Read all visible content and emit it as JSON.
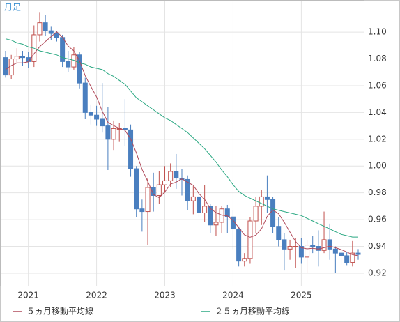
{
  "chart_data": {
    "type": "candlestick",
    "period_label": "月足",
    "categories": [
      null,
      null,
      null,
      null,
      "2021",
      null,
      null,
      null,
      null,
      null,
      null,
      null,
      null,
      null,
      null,
      null,
      "2022",
      null,
      null,
      null,
      null,
      null,
      null,
      null,
      null,
      null,
      null,
      null,
      "2023",
      null,
      null,
      null,
      null,
      null,
      null,
      null,
      null,
      null,
      null,
      null,
      "2024",
      null,
      null,
      null,
      null,
      null,
      null,
      null,
      null,
      null,
      null,
      null,
      "2025",
      null,
      null,
      null,
      null,
      null,
      null,
      null,
      null,
      null,
      null
    ],
    "open": [
      1.081,
      1.068,
      1.08,
      1.082,
      1.081,
      1.078,
      1.098,
      1.107,
      1.101,
      1.099,
      1.096,
      1.078,
      1.074,
      1.083,
      1.062,
      1.04,
      1.038,
      1.035,
      1.03,
      1.02,
      1.028,
      1.028,
      1.027,
      0.998,
      0.968,
      0.966,
      0.984,
      0.978,
      0.986,
      0.989,
      0.996,
      0.991,
      0.99,
      0.974,
      0.977,
      0.965,
      0.97,
      0.956,
      0.958,
      0.968,
      0.962,
      0.953,
      0.929,
      0.931,
      0.959,
      0.97,
      0.977,
      0.975,
      0.955,
      0.945,
      0.938,
      0.94,
      0.94,
      0.932,
      0.941,
      0.94,
      0.937,
      0.945,
      0.938,
      0.935,
      0.933,
      0.928,
      0.935
    ],
    "high": [
      1.086,
      1.083,
      1.088,
      1.086,
      1.085,
      1.105,
      1.115,
      1.113,
      1.104,
      1.101,
      1.098,
      1.086,
      1.089,
      1.085,
      1.066,
      1.046,
      1.045,
      1.062,
      1.044,
      1.034,
      1.032,
      1.05,
      1.031,
      1.0,
      0.975,
      0.991,
      0.995,
      0.996,
      1.0,
      1.002,
      1.009,
      0.998,
      0.993,
      0.985,
      0.981,
      0.986,
      0.972,
      0.97,
      0.97,
      0.971,
      0.967,
      0.955,
      0.935,
      0.962,
      0.977,
      0.982,
      0.993,
      0.977,
      0.962,
      0.95,
      0.945,
      0.946,
      0.946,
      0.945,
      0.948,
      0.952,
      0.966,
      0.957,
      0.94,
      0.938,
      0.936,
      0.944,
      0.938
    ],
    "low": [
      1.066,
      1.065,
      1.077,
      1.075,
      1.073,
      1.074,
      1.093,
      1.097,
      1.094,
      1.093,
      1.074,
      1.07,
      1.072,
      1.058,
      1.035,
      1.031,
      1.03,
      1.025,
      0.997,
      1.012,
      1.018,
      1.015,
      0.992,
      0.962,
      0.951,
      0.941,
      0.966,
      0.972,
      0.98,
      0.984,
      0.983,
      0.978,
      0.967,
      0.964,
      0.962,
      0.958,
      0.95,
      0.948,
      0.95,
      0.95,
      0.938,
      0.925,
      0.925,
      0.927,
      0.95,
      0.956,
      0.965,
      0.95,
      0.94,
      0.922,
      0.93,
      0.924,
      0.927,
      0.92,
      0.935,
      0.925,
      0.935,
      0.93,
      0.92,
      0.926,
      0.926,
      0.925,
      0.93
    ],
    "close": [
      1.068,
      1.08,
      1.082,
      1.081,
      1.078,
      1.098,
      1.107,
      1.101,
      1.099,
      1.096,
      1.078,
      1.074,
      1.083,
      1.062,
      1.04,
      1.038,
      1.035,
      1.03,
      1.02,
      1.028,
      1.028,
      1.027,
      0.998,
      0.968,
      0.966,
      0.984,
      0.978,
      0.986,
      0.989,
      0.996,
      0.991,
      0.99,
      0.974,
      0.977,
      0.965,
      0.97,
      0.956,
      0.958,
      0.968,
      0.962,
      0.953,
      0.929,
      0.931,
      0.959,
      0.97,
      0.977,
      0.975,
      0.955,
      0.945,
      0.938,
      0.94,
      0.94,
      0.932,
      0.941,
      0.94,
      0.937,
      0.945,
      0.938,
      0.935,
      0.933,
      0.928,
      0.935,
      0.934
    ],
    "up_color": "#c0504d",
    "down_color": "#4a7fbf",
    "series": [
      {
        "name": "５ヵ月移動平均線",
        "color": "#b04a5a",
        "values": [
          1.072,
          1.075,
          1.077,
          1.077,
          1.0778,
          1.0838,
          1.0892,
          1.093,
          1.0966,
          1.1002,
          1.0962,
          1.0896,
          1.086,
          1.0786,
          1.0674,
          1.0594,
          1.0516,
          1.041,
          1.0326,
          1.0302,
          1.0282,
          1.0266,
          1.0202,
          1.0098,
          0.9974,
          0.9886,
          0.9788,
          0.9764,
          0.9806,
          0.9866,
          0.988,
          0.9904,
          0.988,
          0.9856,
          0.9794,
          0.9752,
          0.9684,
          0.9652,
          0.9634,
          0.9628,
          0.9594,
          0.954,
          0.9486,
          0.9468,
          0.9484,
          0.9532,
          0.9624,
          0.9672,
          0.9644,
          0.958,
          0.9506,
          0.9436,
          0.939,
          0.9382,
          0.9386,
          0.938,
          0.939,
          0.9402,
          0.939,
          0.9376,
          0.9358,
          0.9338,
          0.933
        ]
      },
      {
        "name": "２５ヵ月移動平均線",
        "color": "#2aa882",
        "values": [
          1.095,
          1.094,
          1.092,
          1.091,
          1.089,
          1.088,
          1.086,
          1.085,
          1.084,
          1.083,
          1.081,
          1.08,
          1.079,
          1.077,
          1.076,
          1.074,
          1.073,
          1.072,
          1.069,
          1.067,
          1.064,
          1.061,
          1.056,
          1.051,
          1.048,
          1.045,
          1.042,
          1.039,
          1.036,
          1.034,
          1.031,
          1.028,
          1.025,
          1.021,
          1.017,
          1.013,
          1.008,
          1.003,
          0.997,
          0.992,
          0.986,
          0.981,
          0.978,
          0.976,
          0.974,
          0.972,
          0.97,
          0.968,
          0.967,
          0.966,
          0.965,
          0.964,
          0.963,
          0.961,
          0.959,
          0.957,
          0.955,
          0.953,
          0.951,
          0.949,
          0.948,
          0.947,
          0.947
        ]
      }
    ],
    "ylim": [
      0.9106,
      1.124
    ],
    "yticks": [
      0.92,
      0.94,
      0.96,
      0.98,
      {
        "value": 1.0,
        "label": "1.00"
      },
      1.02,
      1.04,
      1.06,
      1.08,
      {
        "value": 1.1,
        "label": "1.10"
      }
    ],
    "grid": true
  }
}
